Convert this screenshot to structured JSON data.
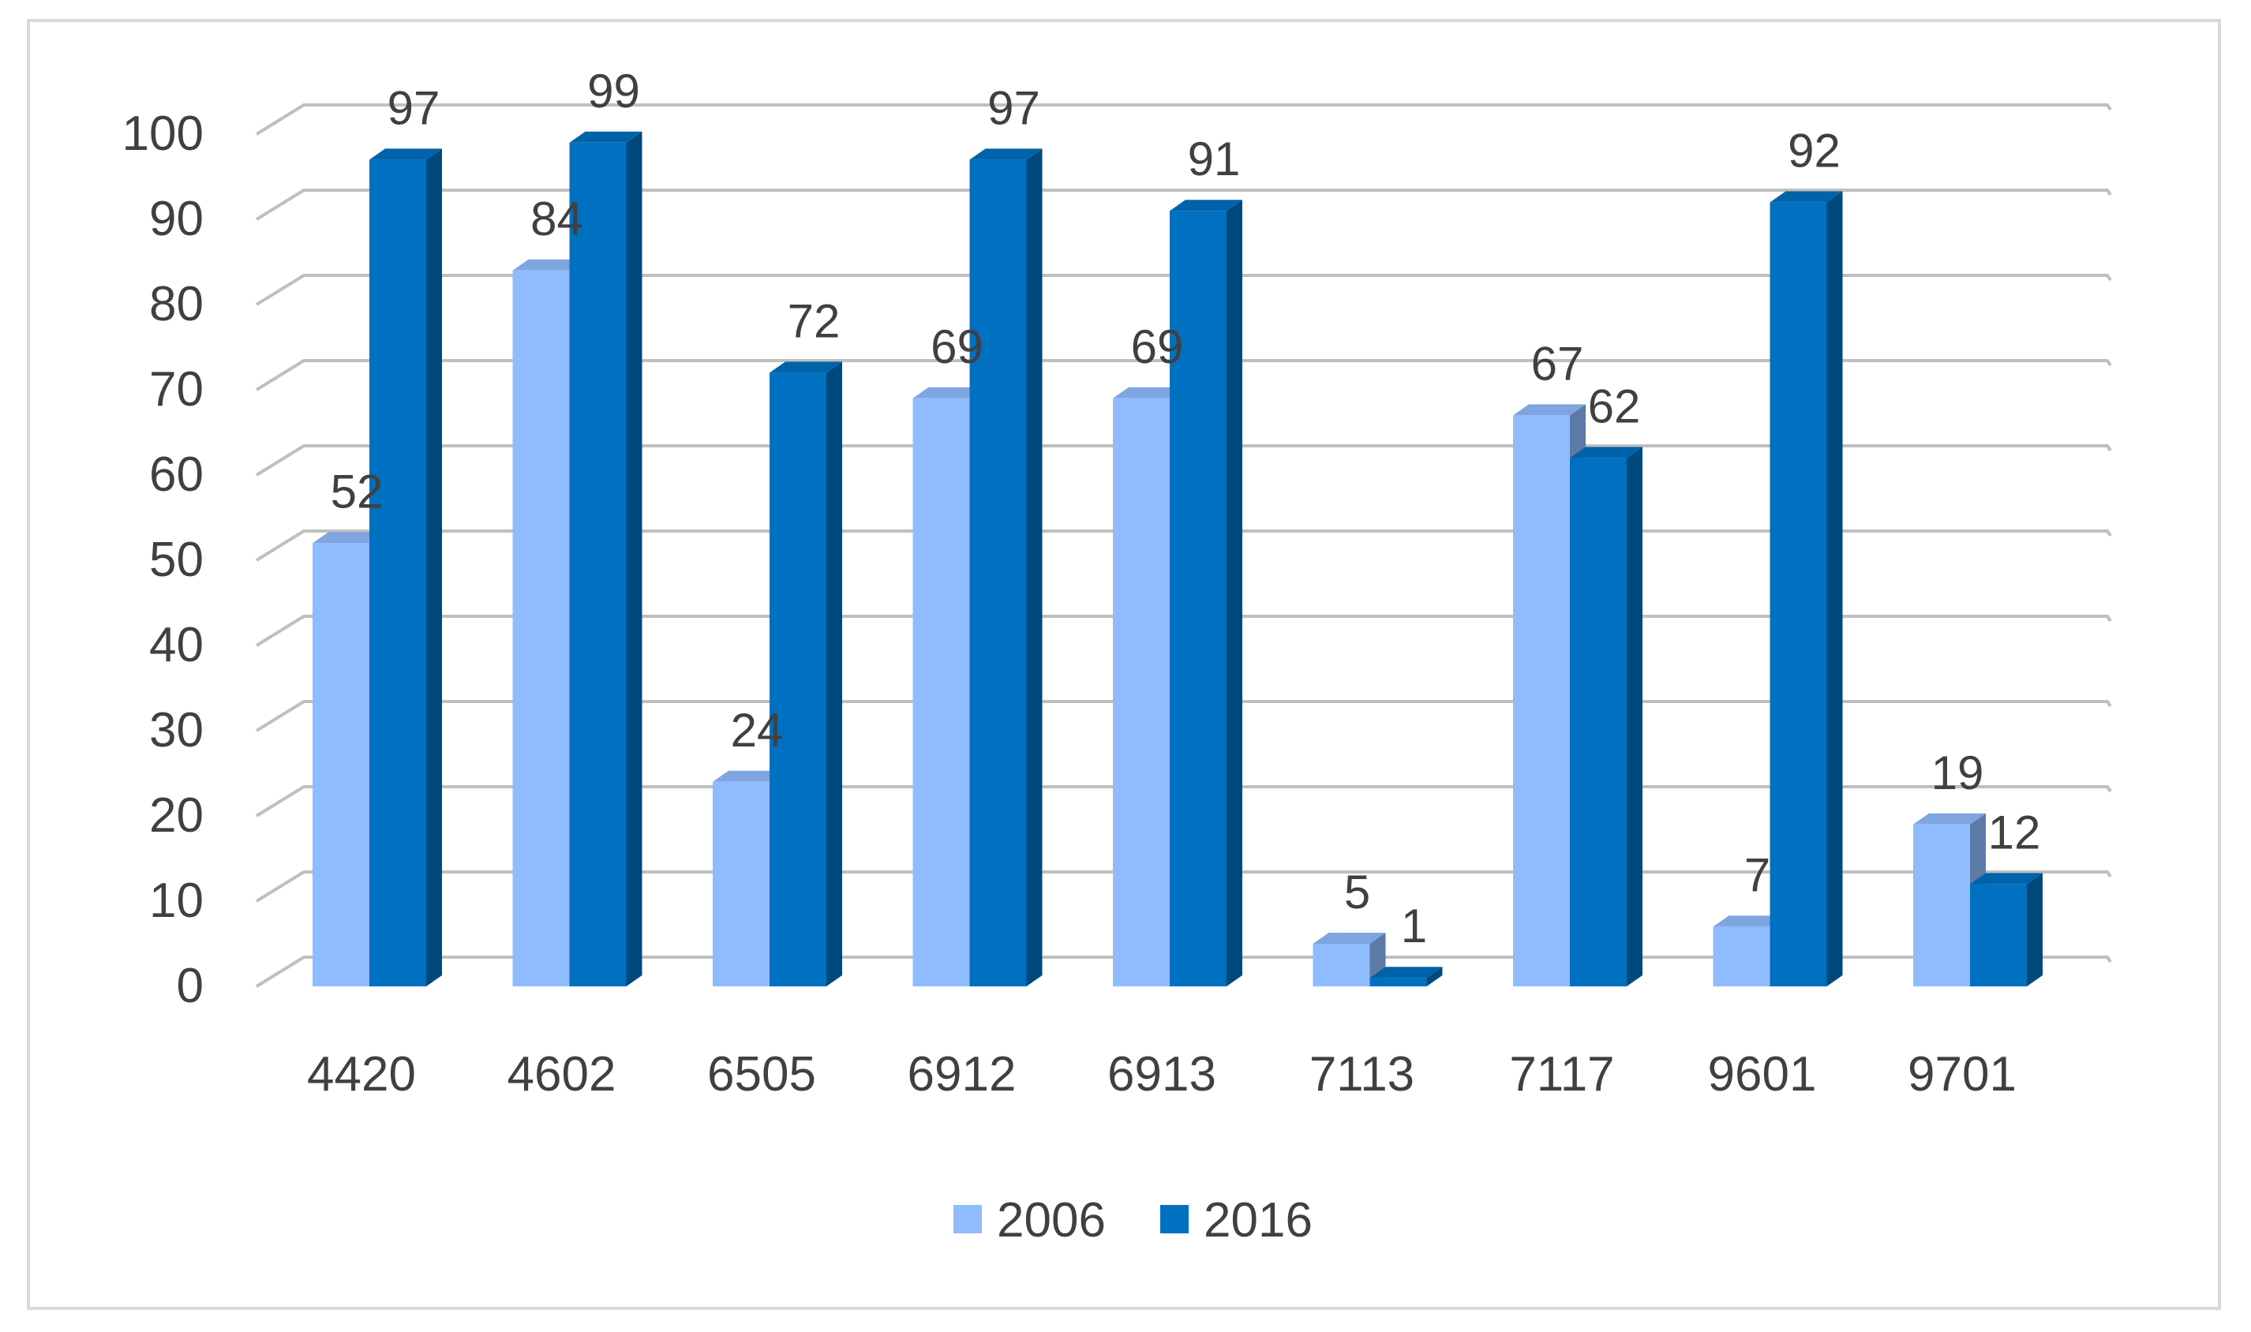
{
  "chart_data": {
    "type": "bar",
    "categories": [
      "4420",
      "4602",
      "6505",
      "6912",
      "6913",
      "7113",
      "7117",
      "9601",
      "9701"
    ],
    "series": [
      {
        "name": "2006",
        "values": [
          52,
          84,
          24,
          69,
          69,
          5,
          67,
          7,
          19
        ],
        "color": "#8fbcff"
      },
      {
        "name": "2016",
        "values": [
          97,
          99,
          72,
          97,
          91,
          1,
          62,
          92,
          12
        ],
        "color": "#0070c0"
      }
    ],
    "title": "",
    "xlabel": "",
    "ylabel": "",
    "ylim": [
      0,
      100
    ],
    "yticks": [
      0,
      10,
      20,
      30,
      40,
      50,
      60,
      70,
      80,
      90,
      100
    ],
    "grid": true,
    "legend_position": "bottom",
    "style": "3d-column"
  }
}
